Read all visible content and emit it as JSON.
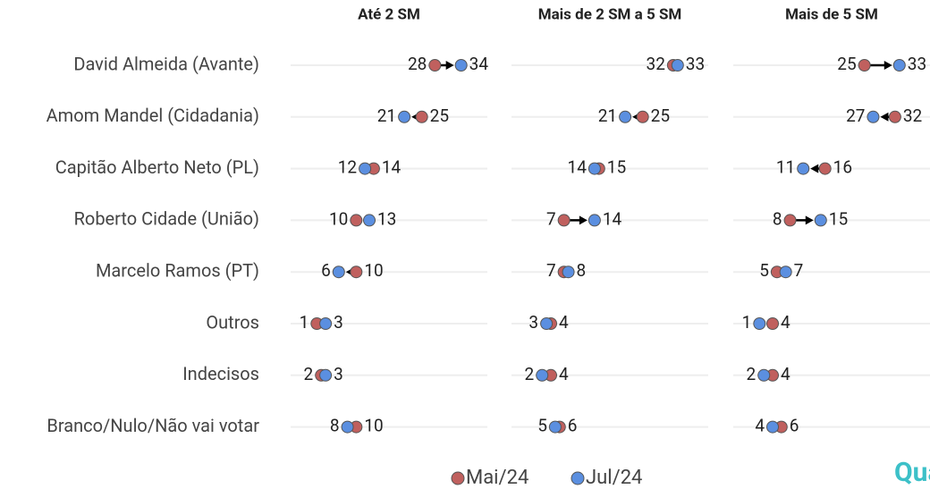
{
  "chart_data": [
    {
      "type": "dumbbell",
      "title": "Até 2 SM",
      "categories": [
        "David Almeida (Avante)",
        "Amom Mandel (Cidadania)",
        "Capitão Alberto Neto (PL)",
        "Roberto Cidade (União)",
        "Marcelo Ramos (PT)",
        "Outros",
        "Indecisos",
        "Branco/Nulo/Não vai votar"
      ],
      "xlim": [
        -5,
        40
      ],
      "series": [
        {
          "name": "Mai/24",
          "color": "#c0605e",
          "values": [
            28,
            25,
            14,
            10,
            10,
            1,
            2,
            10
          ]
        },
        {
          "name": "Jul/24",
          "color": "#5b8fe0",
          "values": [
            34,
            21,
            12,
            13,
            6,
            3,
            3,
            8
          ]
        }
      ]
    },
    {
      "type": "dumbbell",
      "title": "Mais de 2 SM a 5 SM",
      "xlim": [
        -5,
        40
      ],
      "series": [
        {
          "name": "Mai/24",
          "color": "#c0605e",
          "values": [
            32,
            25,
            15,
            7,
            7,
            4,
            4,
            6
          ]
        },
        {
          "name": "Jul/24",
          "color": "#5b8fe0",
          "values": [
            33,
            21,
            14,
            14,
            8,
            3,
            2,
            5
          ]
        }
      ]
    },
    {
      "type": "dumbbell",
      "title": "Mais de 5 SM",
      "xlim": [
        -5,
        40
      ],
      "series": [
        {
          "name": "Mai/24",
          "color": "#c0605e",
          "values": [
            25,
            32,
            16,
            8,
            5,
            4,
            4,
            6
          ]
        },
        {
          "name": "Jul/24",
          "color": "#5b8fe0",
          "values": [
            33,
            27,
            11,
            15,
            7,
            1,
            2,
            4
          ]
        }
      ]
    }
  ],
  "logo": "Qua"
}
